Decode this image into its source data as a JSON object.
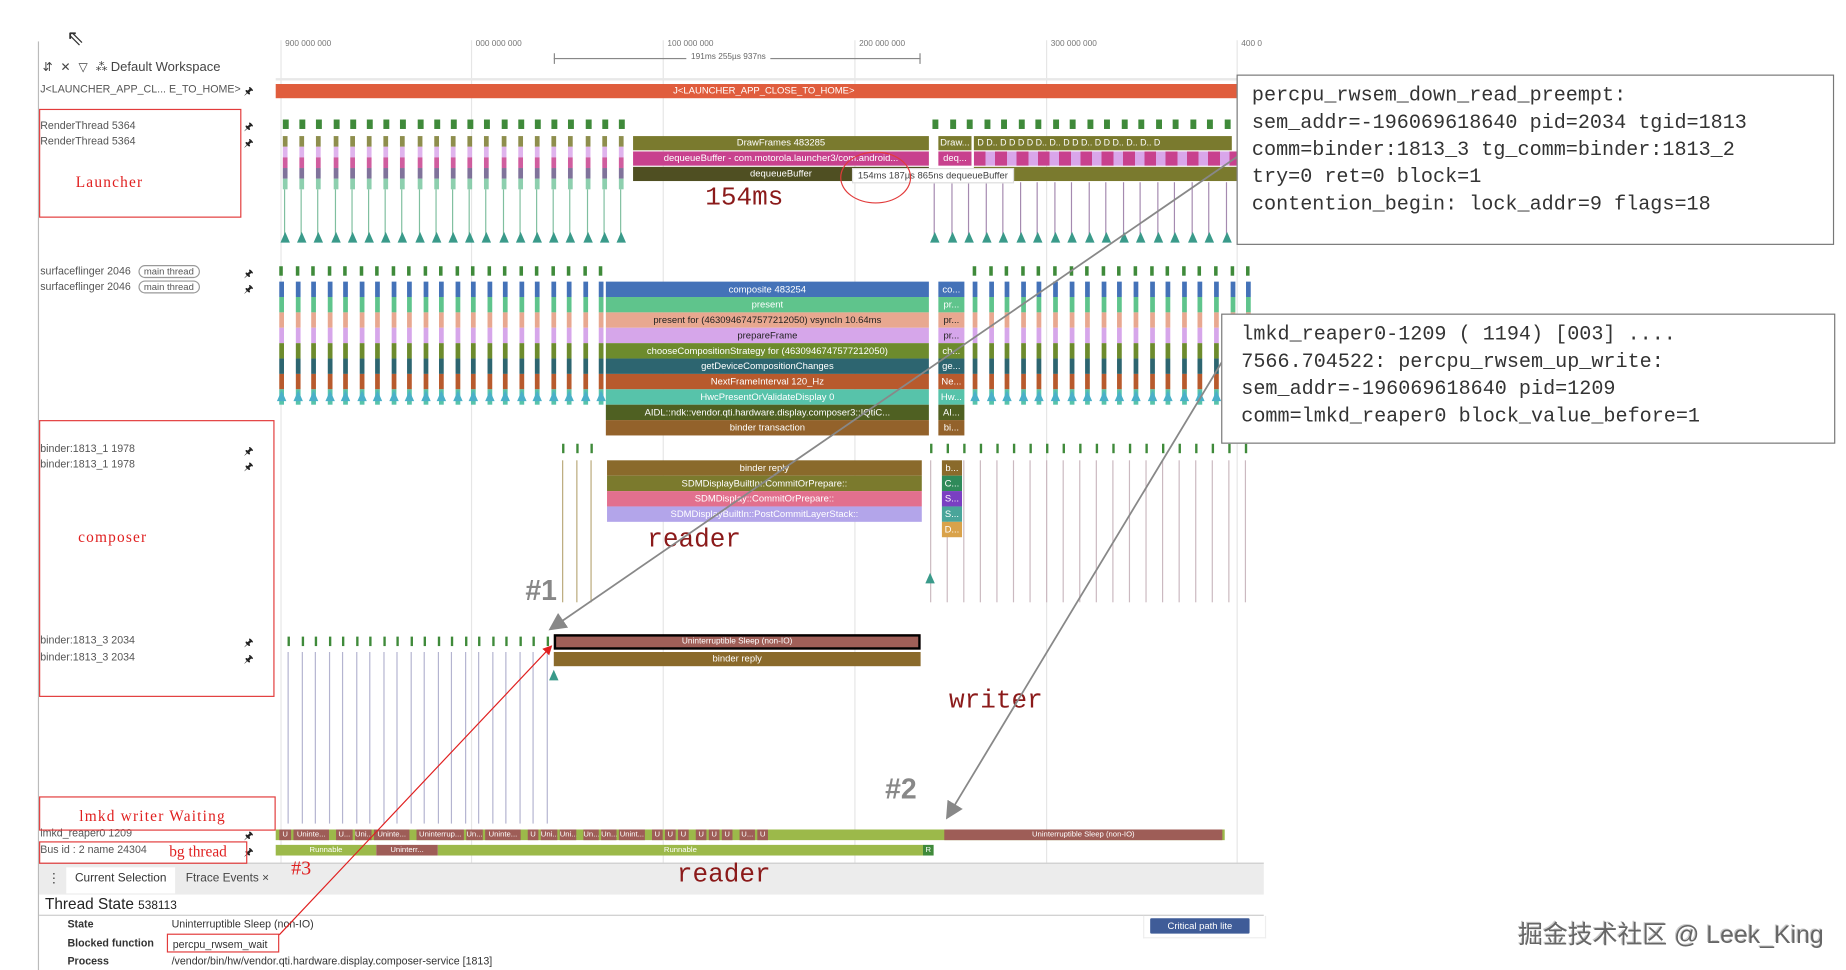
{
  "toolbar": {
    "workspace": "Default Workspace"
  },
  "ruler": {
    "ticks": [
      "900 000 000",
      "000 000 000",
      "100 000 000",
      "200 000 000",
      "300 000 000",
      "400 0"
    ],
    "measure": "191ms 255µs 937ns"
  },
  "tracks": {
    "launcher_slice": {
      "label": "J<LAUNCHER_APP_CL... E_TO_HOME>",
      "bar": "J<LAUNCHER_APP_CLOSE_TO_HOME>"
    },
    "render1": "RenderThread 5364",
    "render2": "RenderThread 5364",
    "sf1": "surfaceflinger 2046",
    "sf2": "surfaceflinger 2046",
    "main_thread": "main thread",
    "binder1a": "binder:1813_1 1978",
    "binder1b": "binder:1813_1 1978",
    "binder3a": "binder:1813_3 2034",
    "binder3b": "binder:1813_3 2034",
    "lmkd": "lmkd_reaper0 1209",
    "bus": "Bus id : 2 name 24304"
  },
  "render_slices": [
    "DrawFrames 483285",
    "dequeueBuffer - com.motorola.launcher3/com.android...",
    "dequeueBuffer"
  ],
  "render_small": [
    "Draw...",
    "deq..."
  ],
  "render_d": "D  D..  D  D  D  D  D..  D..  D  D  D..  D  D  D..  D..  D..  D",
  "tooltip": "154ms 187µs 865ns dequeueBuffer",
  "sf_slices": [
    {
      "label": "composite 483254",
      "short": "co...",
      "color": "#4472b8"
    },
    {
      "label": "present",
      "short": "pr...",
      "color": "#5fc48c"
    },
    {
      "label": "present for  (4630946747577212050) vsyncIn 10.64ms",
      "short": "pr...",
      "color": "#e8a890",
      "dark": true
    },
    {
      "label": "prepareFrame",
      "short": "pr...",
      "color": "#d6a6ea",
      "dark": true
    },
    {
      "label": "chooseCompositionStrategy for  (4630946747577212050)",
      "short": "ch...",
      "color": "#6d8b2d"
    },
    {
      "label": "getDeviceCompositionChanges",
      "short": "ge...",
      "color": "#2d6570"
    },
    {
      "label": "NextFrameInterval 120_Hz",
      "short": "Ne...",
      "color": "#b85a2d"
    },
    {
      "label": "HwcPresentOrValidateDisplay 0",
      "short": "Hw...",
      "color": "#57c3aa"
    },
    {
      "label": "AIDL::ndk::vendor.qti.hardware.display.composer3::IQtiC...",
      "short": "AI...",
      "color": "#4f6022"
    },
    {
      "label": "binder transaction",
      "short": "bi...",
      "color": "#93622b"
    }
  ],
  "binder1_slices": [
    {
      "label": "binder reply",
      "short": "b...",
      "color": "#8a6a2b",
      "scolor": "#8a6a2b"
    },
    {
      "label": "SDMDisplayBuiltIn::CommitOrPrepare::",
      "short": "C...",
      "color": "#7b7a2d",
      "scolor": "#2f8a5a"
    },
    {
      "label": "SDMDisplay::CommitOrPrepare::",
      "short": "S...",
      "color": "#e2708e",
      "scolor": "#7a3fc2"
    },
    {
      "label": "SDMDisplayBuiltIn::PostCommitLayerStack::",
      "short": "S...",
      "color": "#b3a5ea",
      "scolor": "#4aa59a"
    },
    {
      "label": "",
      "short": "D...",
      "color": "transparent",
      "scolor": "#d9a24a"
    }
  ],
  "binder3_slices": [
    "Uninterruptible Sleep (non-IO)",
    "binder reply"
  ],
  "lmkd_segments": [
    "U",
    "Uninte...",
    "U...",
    "Uni...",
    "Uninte...",
    "Uninterrup...",
    "Un...",
    "Uninte...",
    "U",
    "Uni...",
    "Uni...",
    "Un...",
    "Un...",
    "Unint...",
    "U",
    "U",
    "U",
    "U",
    "U",
    "U",
    "U...",
    "U",
    "Uninterruptible Sleep (non-IO)"
  ],
  "bus_segments": [
    "Runnable",
    "Uninterr...",
    "Runnable",
    "R"
  ],
  "annotations": {
    "launcher": "Launcher",
    "composer": "composer",
    "lmkd_wait": "lmkd writer Waiting",
    "bg": "bg thread",
    "ms": "154ms",
    "reader1": "reader",
    "reader2": "reader",
    "writer": "writer",
    "n1": "#1",
    "n2": "#2",
    "n3": "#3"
  },
  "box1": [
    "percpu_rwsem_down_read_preempt:",
    "sem_addr=-196069618640 pid=2034 tgid=1813",
    "comm=binder:1813_3 tg_comm=binder:1813_2",
    "try=0 ret=0 block=1",
    "contention_begin: lock_addr=9 flags=18"
  ],
  "box2": [
    "lmkd_reaper0-1209 ( 1194) [003] ....",
    "7566.704522: percpu_rwsem_up_write:",
    "sem_addr=-196069618640 pid=1209",
    "comm=lmkd_reaper0 block_value_before=1"
  ],
  "panel": {
    "tabs": [
      "Current Selection",
      "Ftrace Events"
    ],
    "title": "Thread State",
    "title_id": "538113",
    "state_label": "State",
    "state_value": "Uninterruptible Sleep (non-IO)",
    "blocked_label": "Blocked function",
    "blocked_value": "percpu_rwsem_wait",
    "process_label": "Process",
    "process_value": "/vendor/bin/hw/vendor.qti.hardware.display.composer-service [1813]",
    "critical_btn": "Critical path lite"
  },
  "watermark": "掘金技术社区 @ Leek_King"
}
